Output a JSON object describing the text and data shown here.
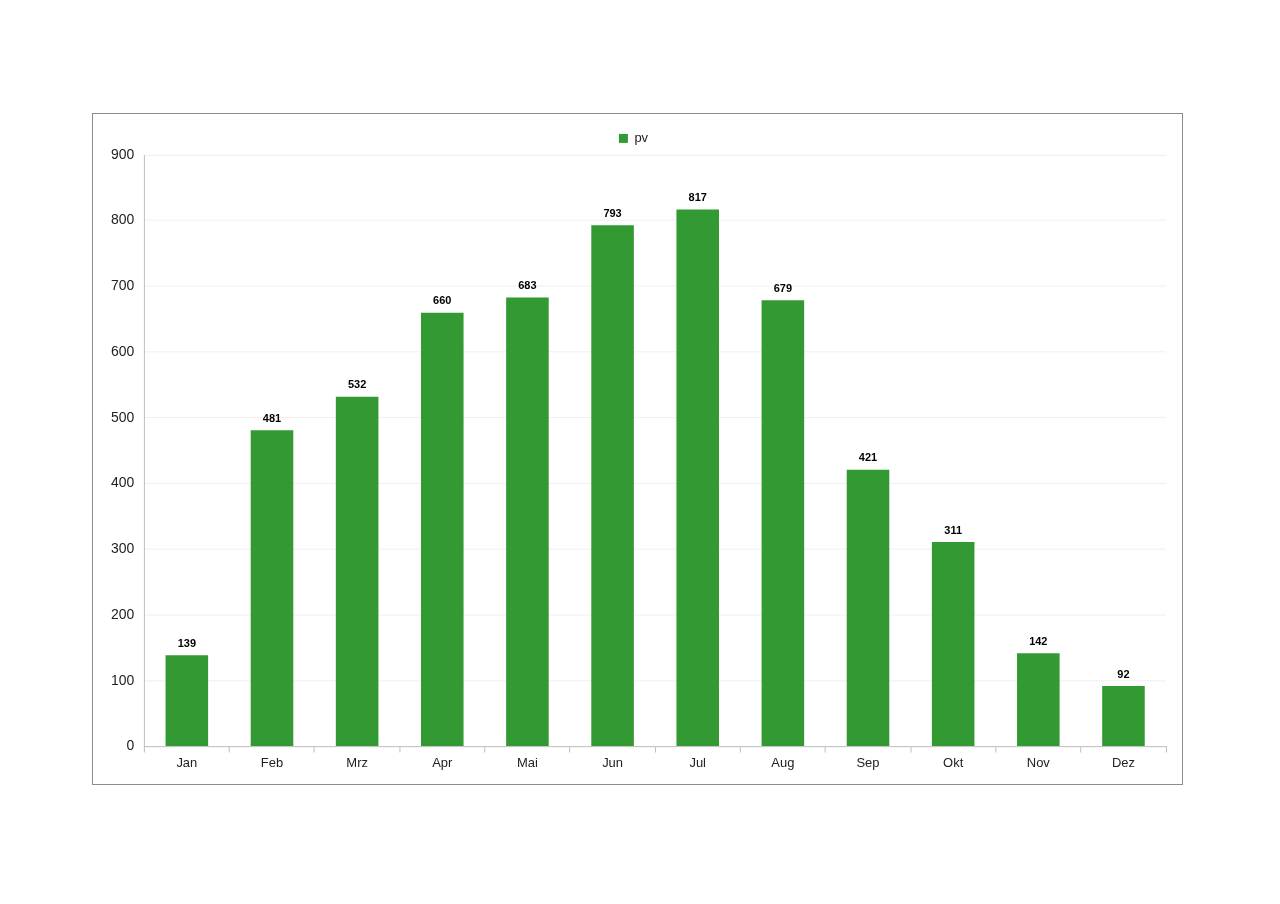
{
  "chart_data": {
    "type": "bar",
    "categories": [
      "Jan",
      "Feb",
      "Mrz",
      "Apr",
      "Mai",
      "Jun",
      "Jul",
      "Aug",
      "Sep",
      "Okt",
      "Nov",
      "Dez"
    ],
    "series": [
      {
        "name": "pv",
        "color": "#339933",
        "values": [
          139,
          481,
          532,
          660,
          683,
          793,
          817,
          679,
          421,
          311,
          142,
          92
        ]
      }
    ],
    "ylim": [
      0,
      900
    ],
    "yticks": [
      0,
      100,
      200,
      300,
      400,
      500,
      600,
      700,
      800,
      900
    ],
    "grid": "y",
    "legend": "top",
    "data_labels": true
  }
}
